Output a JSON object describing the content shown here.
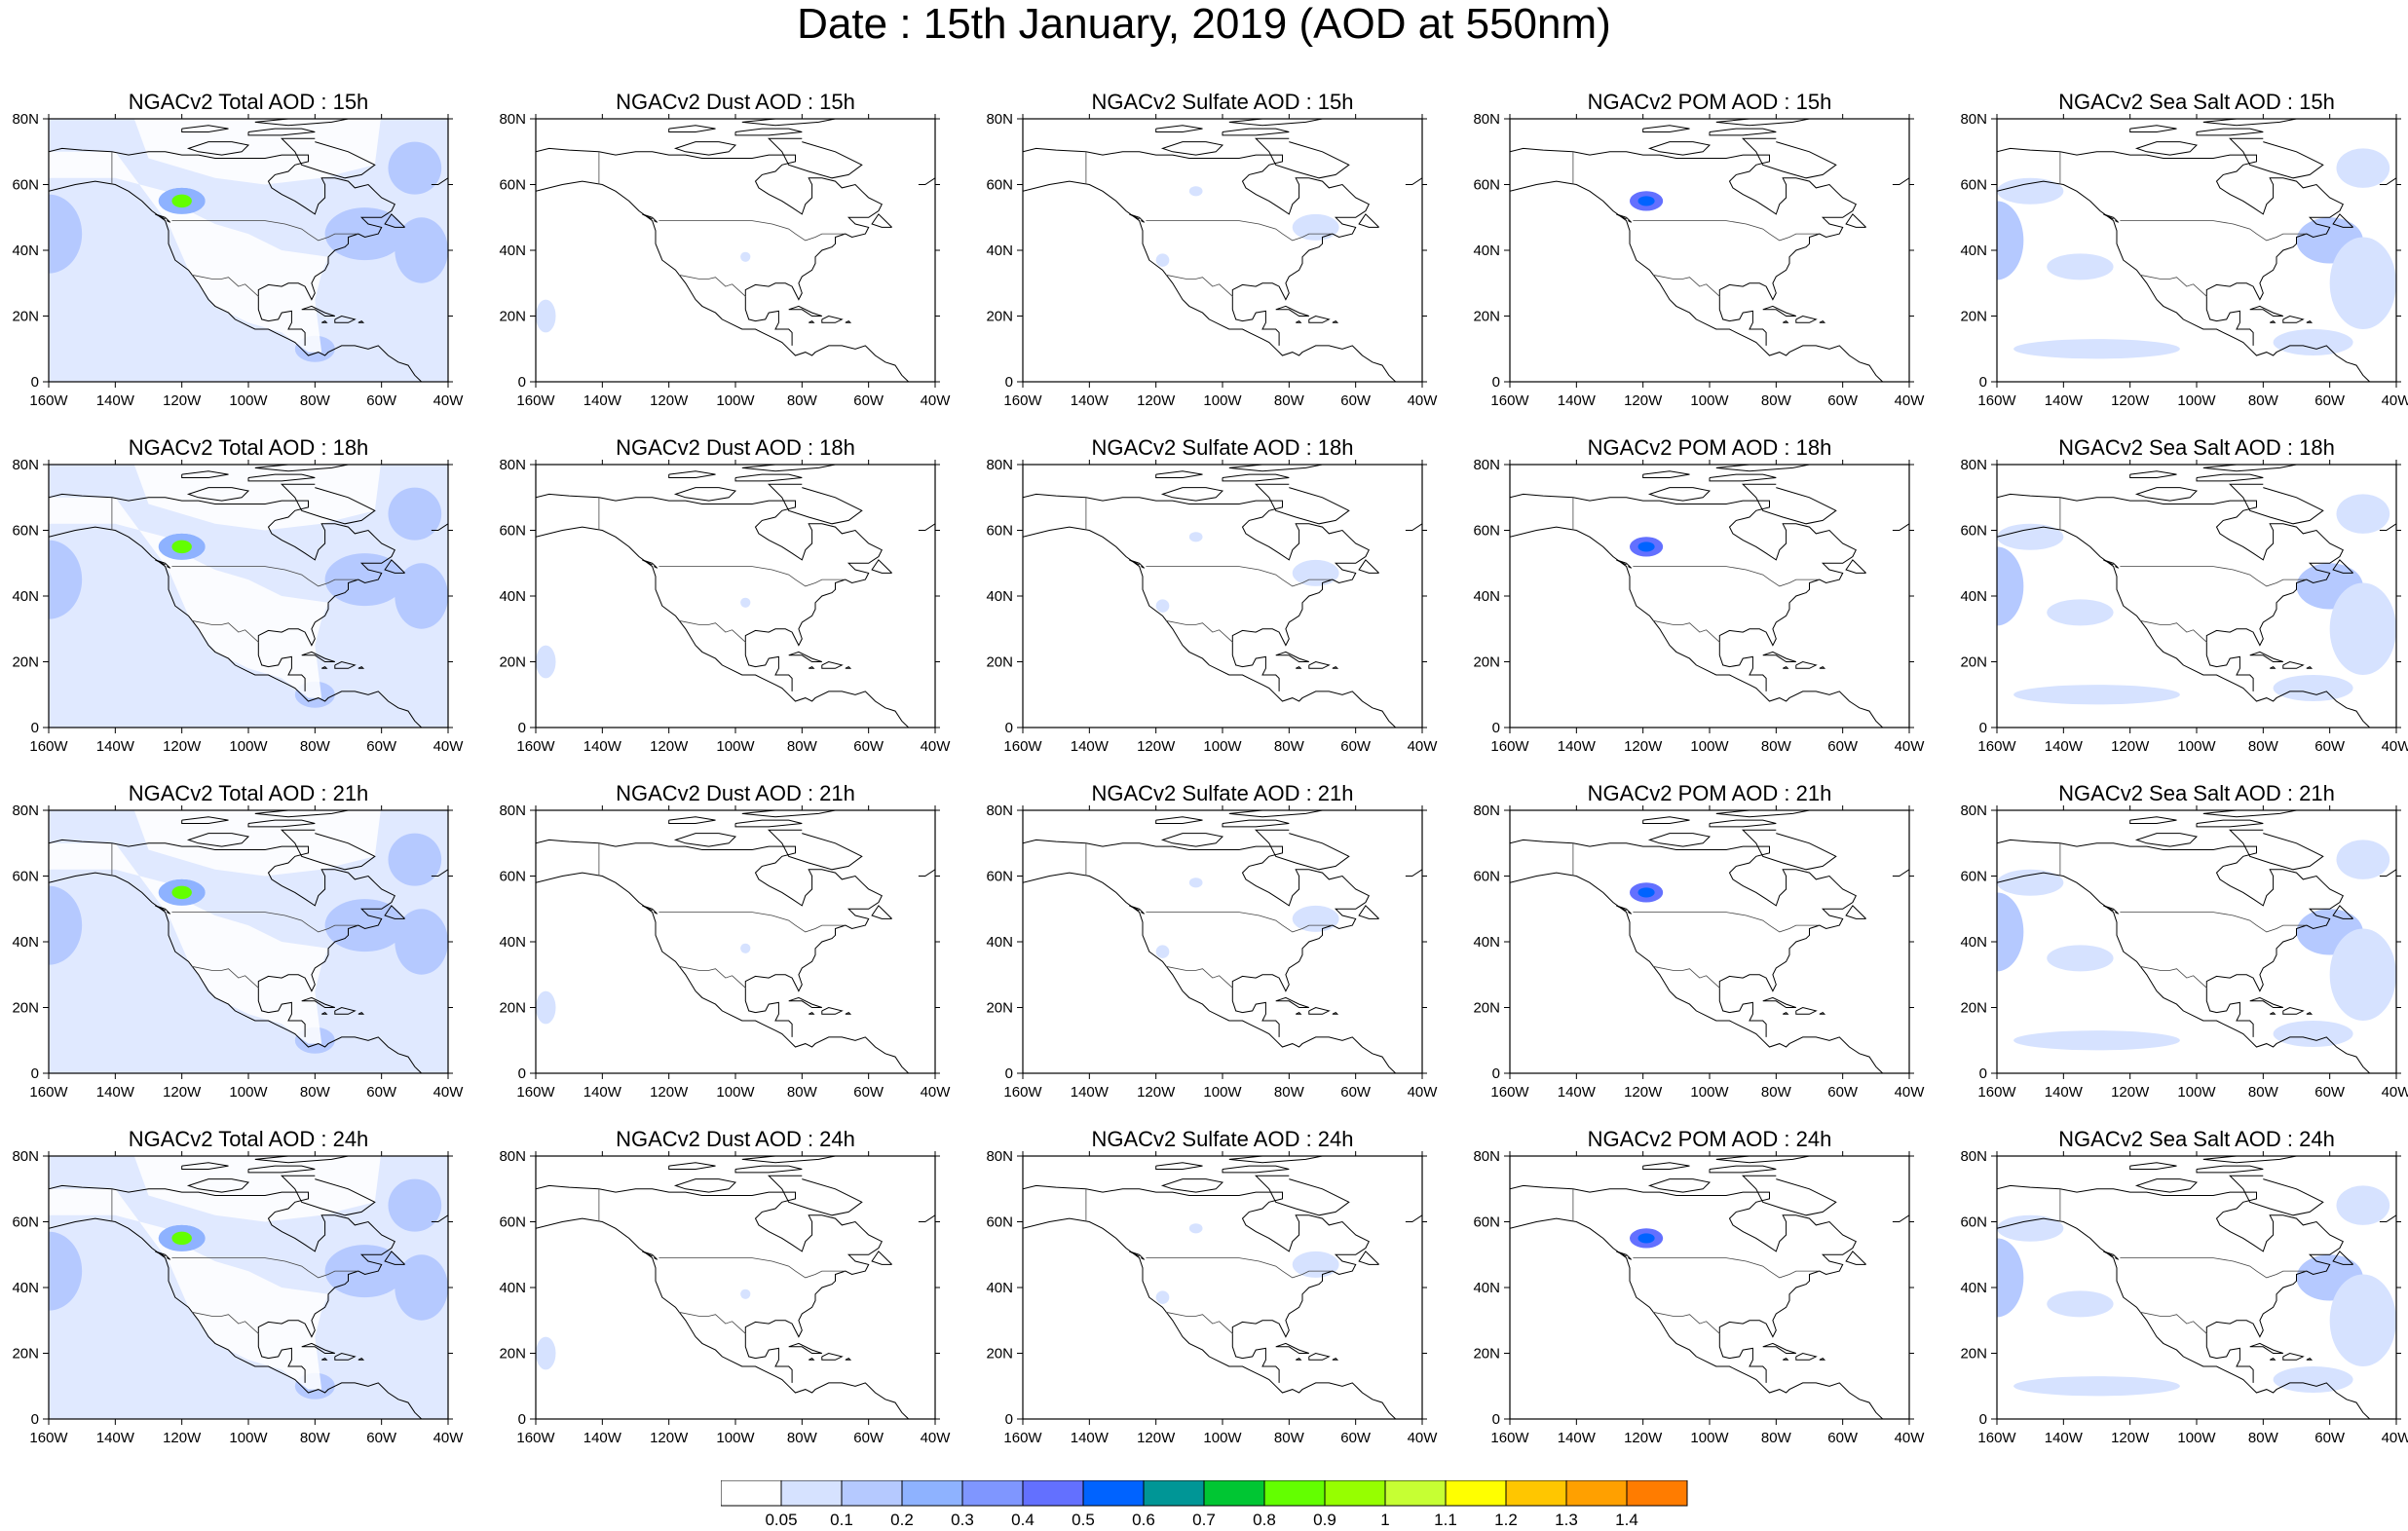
{
  "figure": {
    "title": "Date : 15th January, 2019 (AOD at 550nm)"
  },
  "axes": {
    "lon_ticks": [
      "160W",
      "140W",
      "120W",
      "100W",
      "80W",
      "60W",
      "40W"
    ],
    "lat_ticks": [
      "0",
      "20N",
      "40N",
      "60N",
      "80N"
    ],
    "lon_range": [
      -160,
      -40
    ],
    "lat_range": [
      0,
      80
    ]
  },
  "panels": [
    {
      "title": "NGACv2 Total AOD : 15h",
      "species": "total",
      "hour": 15
    },
    {
      "title": "NGACv2 Dust AOD : 15h",
      "species": "dust",
      "hour": 15
    },
    {
      "title": "NGACv2 Sulfate AOD : 15h",
      "species": "sulfate",
      "hour": 15
    },
    {
      "title": "NGACv2 POM AOD : 15h",
      "species": "pom",
      "hour": 15
    },
    {
      "title": "NGACv2 Sea Salt AOD : 15h",
      "species": "seasalt",
      "hour": 15
    },
    {
      "title": "NGACv2 Total AOD : 18h",
      "species": "total",
      "hour": 18
    },
    {
      "title": "NGACv2 Dust AOD : 18h",
      "species": "dust",
      "hour": 18
    },
    {
      "title": "NGACv2 Sulfate AOD : 18h",
      "species": "sulfate",
      "hour": 18
    },
    {
      "title": "NGACv2 POM AOD : 18h",
      "species": "pom",
      "hour": 18
    },
    {
      "title": "NGACv2 Sea Salt AOD : 18h",
      "species": "seasalt",
      "hour": 18
    },
    {
      "title": "NGACv2 Total AOD : 21h",
      "species": "total",
      "hour": 21
    },
    {
      "title": "NGACv2 Dust AOD : 21h",
      "species": "dust",
      "hour": 21
    },
    {
      "title": "NGACv2 Sulfate AOD : 21h",
      "species": "sulfate",
      "hour": 21
    },
    {
      "title": "NGACv2 POM AOD : 21h",
      "species": "pom",
      "hour": 21
    },
    {
      "title": "NGACv2 Sea Salt AOD : 21h",
      "species": "seasalt",
      "hour": 21
    },
    {
      "title": "NGACv2 Total AOD : 24h",
      "species": "total",
      "hour": 24
    },
    {
      "title": "NGACv2 Dust AOD : 24h",
      "species": "dust",
      "hour": 24
    },
    {
      "title": "NGACv2 Sulfate AOD : 24h",
      "species": "sulfate",
      "hour": 24
    },
    {
      "title": "NGACv2 POM AOD : 24h",
      "species": "pom",
      "hour": 24
    },
    {
      "title": "NGACv2 Sea Salt  AOD : 24h",
      "species": "seasalt",
      "hour": 24
    }
  ],
  "colorbar": {
    "colors": [
      "#ffffff",
      "#d6e2ff",
      "#b5c9ff",
      "#8eb2ff",
      "#7f96ff",
      "#6370ff",
      "#0063ff",
      "#009696",
      "#00c633",
      "#63ff00",
      "#96ff00",
      "#c6ff33",
      "#ffff00",
      "#ffc600",
      "#ffa000",
      "#ff7c00",
      "#ff1900"
    ],
    "labels": [
      "0.05",
      "0.1",
      "0.2",
      "0.3",
      "0.4",
      "0.5",
      "0.6",
      "0.7",
      "0.8",
      "0.9",
      "1",
      "1.1",
      "1.2",
      "1.3",
      "1.4"
    ]
  },
  "map_features": {
    "total": [
      {
        "type": "field",
        "lon": [
          -160,
          -40
        ],
        "lat": [
          0,
          80
        ],
        "level": 1
      },
      {
        "type": "blob",
        "lon": -160,
        "lat": 45,
        "rlon": 10,
        "rlat": 12,
        "level": 2
      },
      {
        "type": "blob",
        "lon": -120,
        "lat": 55,
        "rlon": 7,
        "rlat": 4,
        "level": 3
      },
      {
        "type": "blob",
        "lon": -120,
        "lat": 55,
        "rlon": 3,
        "rlat": 2,
        "level": 9
      },
      {
        "type": "blob",
        "lon": -65,
        "lat": 45,
        "rlon": 12,
        "rlat": 8,
        "level": 2
      },
      {
        "type": "blob",
        "lon": -48,
        "lat": 40,
        "rlon": 8,
        "rlat": 10,
        "level": 2
      },
      {
        "type": "blob",
        "lon": -80,
        "lat": 10,
        "rlon": 6,
        "rlat": 4,
        "level": 2
      },
      {
        "type": "blob",
        "lon": -50,
        "lat": 65,
        "rlon": 8,
        "rlat": 8,
        "level": 2
      }
    ],
    "dust": [
      {
        "type": "blob",
        "lon": -157,
        "lat": 20,
        "rlon": 3,
        "rlat": 5,
        "level": 1
      },
      {
        "type": "blob",
        "lon": -97,
        "lat": 38,
        "rlon": 1.5,
        "rlat": 1.5,
        "level": 1
      }
    ],
    "sulfate": [
      {
        "type": "blob",
        "lon": -72,
        "lat": 47,
        "rlon": 7,
        "rlat": 4,
        "level": 1
      },
      {
        "type": "blob",
        "lon": -118,
        "lat": 37,
        "rlon": 2,
        "rlat": 2,
        "level": 1
      },
      {
        "type": "blob",
        "lon": -108,
        "lat": 58,
        "rlon": 2,
        "rlat": 1.5,
        "level": 1
      }
    ],
    "pom": [
      {
        "type": "blob",
        "lon": -119,
        "lat": 55,
        "rlon": 5,
        "rlat": 3,
        "level": 5
      },
      {
        "type": "blob",
        "lon": -119,
        "lat": 55,
        "rlon": 2.5,
        "rlat": 1.5,
        "level": 6
      }
    ],
    "seasalt": [
      {
        "type": "blob",
        "lon": -160,
        "lat": 43,
        "rlon": 8,
        "rlat": 12,
        "level": 2
      },
      {
        "type": "blob",
        "lon": -150,
        "lat": 58,
        "rlon": 10,
        "rlat": 4,
        "level": 1
      },
      {
        "type": "blob",
        "lon": -135,
        "lat": 35,
        "rlon": 10,
        "rlat": 4,
        "level": 1
      },
      {
        "type": "blob",
        "lon": -60,
        "lat": 43,
        "rlon": 10,
        "rlat": 7,
        "level": 2
      },
      {
        "type": "blob",
        "lon": -50,
        "lat": 30,
        "rlon": 10,
        "rlat": 14,
        "level": 1
      },
      {
        "type": "blob",
        "lon": -130,
        "lat": 10,
        "rlon": 25,
        "rlat": 3,
        "level": 1
      },
      {
        "type": "blob",
        "lon": -65,
        "lat": 12,
        "rlon": 12,
        "rlat": 4,
        "level": 1
      },
      {
        "type": "blob",
        "lon": -50,
        "lat": 65,
        "rlon": 8,
        "rlat": 6,
        "level": 1
      }
    ]
  }
}
